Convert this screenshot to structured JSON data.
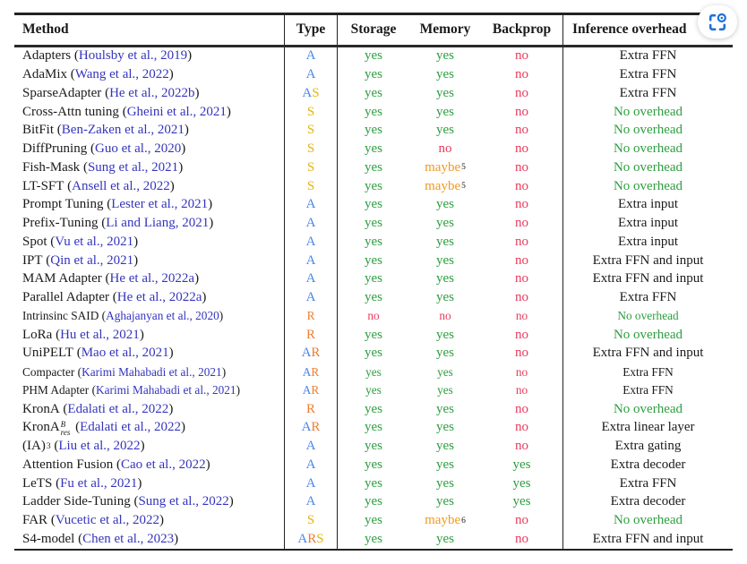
{
  "table": {
    "columns": [
      {
        "key": "method",
        "label": "Method"
      },
      {
        "key": "type",
        "label": "Type"
      },
      {
        "key": "storage",
        "label": "Storage"
      },
      {
        "key": "memory",
        "label": "Memory"
      },
      {
        "key": "backprop",
        "label": "Backprop"
      },
      {
        "key": "overhead",
        "label": "Inference overhead"
      }
    ],
    "rows": [
      {
        "name": "Adapters",
        "cite": "Houlsby et al., 2019",
        "type": "A",
        "storage": "yes",
        "memory": "yes",
        "backprop": "no",
        "overhead": "Extra FFN"
      },
      {
        "name": "AdaMix",
        "cite": "Wang et al., 2022",
        "type": "A",
        "storage": "yes",
        "memory": "yes",
        "backprop": "no",
        "overhead": "Extra FFN"
      },
      {
        "name": "SparseAdapter",
        "cite": "He et al., 2022b",
        "type": "AS",
        "storage": "yes",
        "memory": "yes",
        "backprop": "no",
        "overhead": "Extra FFN"
      },
      {
        "name": "Cross-Attn tuning",
        "cite": "Gheini et al., 2021",
        "type": "S",
        "storage": "yes",
        "memory": "yes",
        "backprop": "no",
        "overhead": "No overhead"
      },
      {
        "name": "BitFit",
        "cite": "Ben-Zaken et al., 2021",
        "type": "S",
        "storage": "yes",
        "memory": "yes",
        "backprop": "no",
        "overhead": "No overhead"
      },
      {
        "name": "DiffPruning",
        "cite": "Guo et al., 2020",
        "type": "S",
        "storage": "yes",
        "memory": "no",
        "backprop": "no",
        "overhead": "No overhead"
      },
      {
        "name": "Fish-Mask",
        "cite": "Sung et al., 2021",
        "type": "S",
        "storage": "yes",
        "memory": "maybe",
        "memory_sup": "5",
        "backprop": "no",
        "overhead": "No overhead"
      },
      {
        "name": "LT-SFT",
        "cite": "Ansell et al., 2022",
        "type": "S",
        "storage": "yes",
        "memory": "maybe",
        "memory_sup": "5",
        "backprop": "no",
        "overhead": "No overhead"
      },
      {
        "name": "Prompt Tuning",
        "cite": "Lester et al., 2021",
        "type": "A",
        "storage": "yes",
        "memory": "yes",
        "backprop": "no",
        "overhead": "Extra input"
      },
      {
        "name": "Prefix-Tuning",
        "cite": "Li and Liang, 2021",
        "type": "A",
        "storage": "yes",
        "memory": "yes",
        "backprop": "no",
        "overhead": "Extra input"
      },
      {
        "name": "Spot",
        "cite": "Vu et al., 2021",
        "type": "A",
        "storage": "yes",
        "memory": "yes",
        "backprop": "no",
        "overhead": "Extra input"
      },
      {
        "name": "IPT",
        "cite": "Qin et al., 2021",
        "type": "A",
        "storage": "yes",
        "memory": "yes",
        "backprop": "no",
        "overhead": "Extra FFN and input"
      },
      {
        "name": "MAM Adapter",
        "cite": "He et al., 2022a",
        "type": "A",
        "storage": "yes",
        "memory": "yes",
        "backprop": "no",
        "overhead": "Extra FFN and input"
      },
      {
        "name": "Parallel Adapter",
        "cite": "He et al., 2022a",
        "type": "A",
        "storage": "yes",
        "memory": "yes",
        "backprop": "no",
        "overhead": "Extra FFN"
      },
      {
        "name": "Intrinsinc SAID",
        "cite": "Aghajanyan et al., 2020",
        "type": "R",
        "storage": "no",
        "memory": "no",
        "backprop": "no",
        "overhead": "No overhead",
        "small": true
      },
      {
        "name": "LoRa",
        "cite": "Hu et al., 2021",
        "type": "R",
        "storage": "yes",
        "memory": "yes",
        "backprop": "no",
        "overhead": "No overhead"
      },
      {
        "name": "UniPELT",
        "cite": "Mao et al., 2021",
        "type": "AR",
        "storage": "yes",
        "memory": "yes",
        "backprop": "no",
        "overhead": "Extra FFN and input"
      },
      {
        "name": "Compacter",
        "cite": "Karimi Mahabadi et al., 2021",
        "type": "AR",
        "storage": "yes",
        "memory": "yes",
        "backprop": "no",
        "overhead": "Extra FFN",
        "small": true
      },
      {
        "name": "PHM Adapter",
        "cite": "Karimi Mahabadi et al., 2021",
        "type": "AR",
        "storage": "yes",
        "memory": "yes",
        "backprop": "no",
        "overhead": "Extra FFN",
        "small": true
      },
      {
        "name": "KronA",
        "cite": "Edalati et al., 2022",
        "type": "R",
        "storage": "yes",
        "memory": "yes",
        "backprop": "no",
        "overhead": "No overhead"
      },
      {
        "name": "KronA",
        "stack_sup": "B",
        "stack_sub": "res",
        "cite": "Edalati et al., 2022",
        "type": "AR",
        "storage": "yes",
        "memory": "yes",
        "backprop": "no",
        "overhead": "Extra linear layer"
      },
      {
        "name": "(IA)",
        "sup": "3",
        "cite": "Liu et al., 2022",
        "type": "A",
        "storage": "yes",
        "memory": "yes",
        "backprop": "no",
        "overhead": "Extra gating"
      },
      {
        "name": "Attention Fusion",
        "cite": "Cao et al., 2022",
        "type": "A",
        "storage": "yes",
        "memory": "yes",
        "backprop": "yes",
        "overhead": "Extra decoder"
      },
      {
        "name": "LeTS",
        "cite": "Fu et al., 2021",
        "type": "A",
        "storage": "yes",
        "memory": "yes",
        "backprop": "yes",
        "overhead": "Extra FFN"
      },
      {
        "name": "Ladder Side-Tuning",
        "cite": "Sung et al., 2022",
        "type": "A",
        "storage": "yes",
        "memory": "yes",
        "backprop": "yes",
        "overhead": "Extra decoder"
      },
      {
        "name": "FAR",
        "cite": "Vucetic et al., 2022",
        "type": "S",
        "storage": "yes",
        "memory": "maybe",
        "memory_sup": "6",
        "backprop": "no",
        "overhead": "No overhead"
      },
      {
        "name": "S4-model",
        "cite": "Chen et al., 2023",
        "type": "ARS",
        "storage": "yes",
        "memory": "yes",
        "backprop": "no",
        "overhead": "Extra FFN and input"
      }
    ]
  },
  "colors": {
    "text": "#1a1a1a",
    "cite": "#3534bd",
    "rule": "#222222",
    "type_letters": {
      "A": "#4a86e8",
      "S": "#e3b50a",
      "R": "#f07d2e"
    },
    "values": {
      "yes": "#2d9e3f",
      "no": "#ea3a5c",
      "maybe": "#f0992199"
    },
    "value_colors": {
      "yes": "#2d9e3f",
      "no": "#ea3a5c",
      "maybe": "#f09921"
    },
    "no_overhead_green": "#2d9e3f",
    "capture_icon_blue": "#2170d8"
  }
}
